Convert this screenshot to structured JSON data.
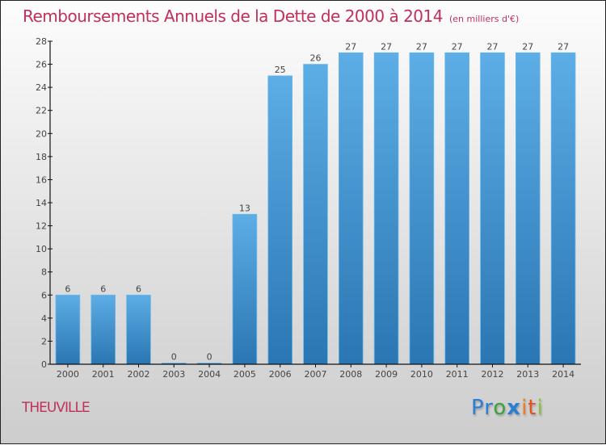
{
  "header": {
    "title": "Remboursements Annuels de la Dette de 2000 à 2014",
    "unit": "(en milliers d'€)"
  },
  "footer": {
    "city": "THEUVILLE",
    "logo_letters": [
      {
        "char": "P",
        "color": "#2a7fd4"
      },
      {
        "char": "r",
        "color": "#2a7fd4"
      },
      {
        "char": "o",
        "color": "#3aa33a"
      },
      {
        "char": "x",
        "color": "#2a7fd4"
      },
      {
        "char": "i",
        "color": "#f07d1a"
      },
      {
        "char": "t",
        "color": "#e8501a"
      },
      {
        "char": "i",
        "color": "#88c43a"
      }
    ]
  },
  "colors": {
    "bar_top": "#5dade6",
    "bar_bottom": "#2a76b2",
    "title": "#c0305a",
    "axis": "#111111"
  },
  "chart_data": {
    "type": "bar",
    "title": "Remboursements Annuels de la Dette de 2000 à 2014",
    "subtitle": "(en milliers d'€)",
    "xlabel": "",
    "ylabel": "",
    "categories": [
      "2000",
      "2001",
      "2002",
      "2003",
      "2004",
      "2005",
      "2006",
      "2007",
      "2008",
      "2009",
      "2010",
      "2011",
      "2012",
      "2013",
      "2014"
    ],
    "values": [
      6,
      6,
      6,
      0,
      0,
      13,
      25,
      26,
      27,
      27,
      27,
      27,
      27,
      27,
      27
    ],
    "value_labels": [
      "6",
      "6",
      "6",
      "0",
      "0",
      "13",
      "25",
      "26",
      "27",
      "27",
      "27",
      "27",
      "27",
      "27",
      "27"
    ],
    "ylim": [
      0,
      28
    ],
    "yticks": [
      0,
      2,
      4,
      6,
      8,
      10,
      12,
      14,
      16,
      18,
      20,
      22,
      24,
      26,
      28
    ],
    "grid": false,
    "legend": "none"
  }
}
